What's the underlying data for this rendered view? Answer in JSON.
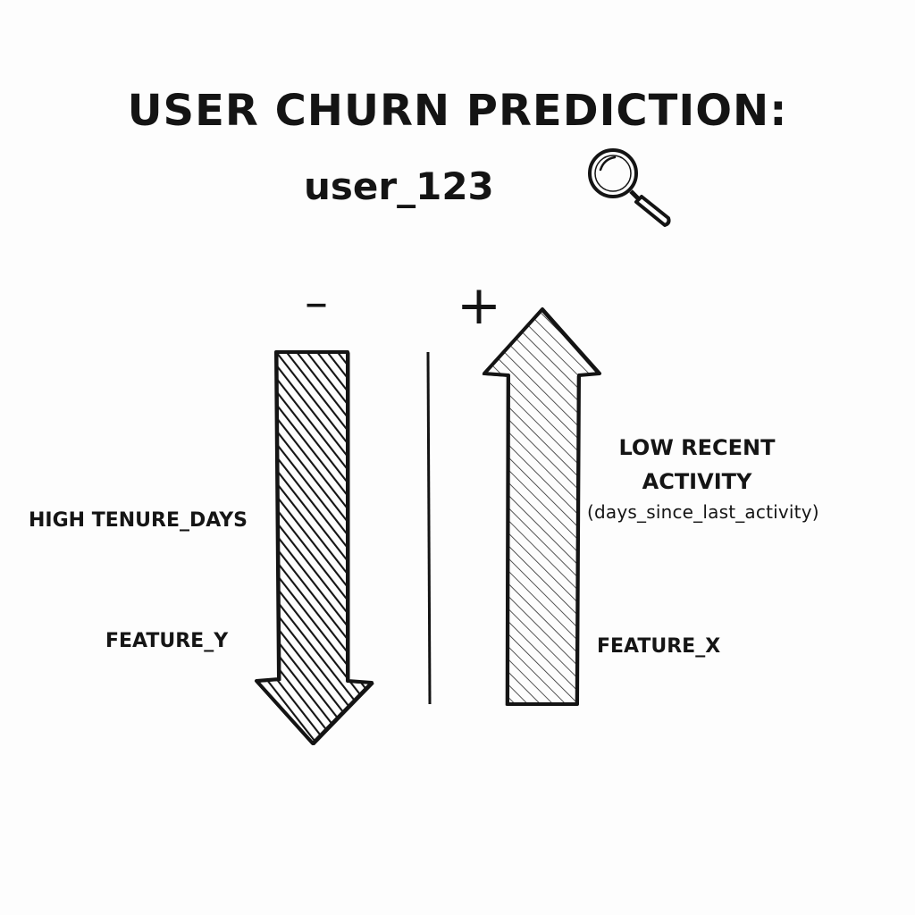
{
  "title": {
    "line1": "USER CHURN PREDICTION:",
    "line2": "user_123",
    "icon": "magnifying-glass-icon"
  },
  "signs": {
    "negative": "–",
    "positive": "+"
  },
  "negative_features": {
    "arrow_direction": "down",
    "labels": [
      "HIGH TENURE_DAYS",
      "FEATURE_Y"
    ]
  },
  "positive_features": {
    "arrow_direction": "up",
    "label_main_line1": "LOW RECENT",
    "label_main_line2": "ACTIVITY",
    "label_main_detail": "(days_since_last_activity)",
    "label_secondary": "FEATURE_X"
  },
  "colors": {
    "ink": "#141414",
    "background": "#fdfdfd"
  }
}
